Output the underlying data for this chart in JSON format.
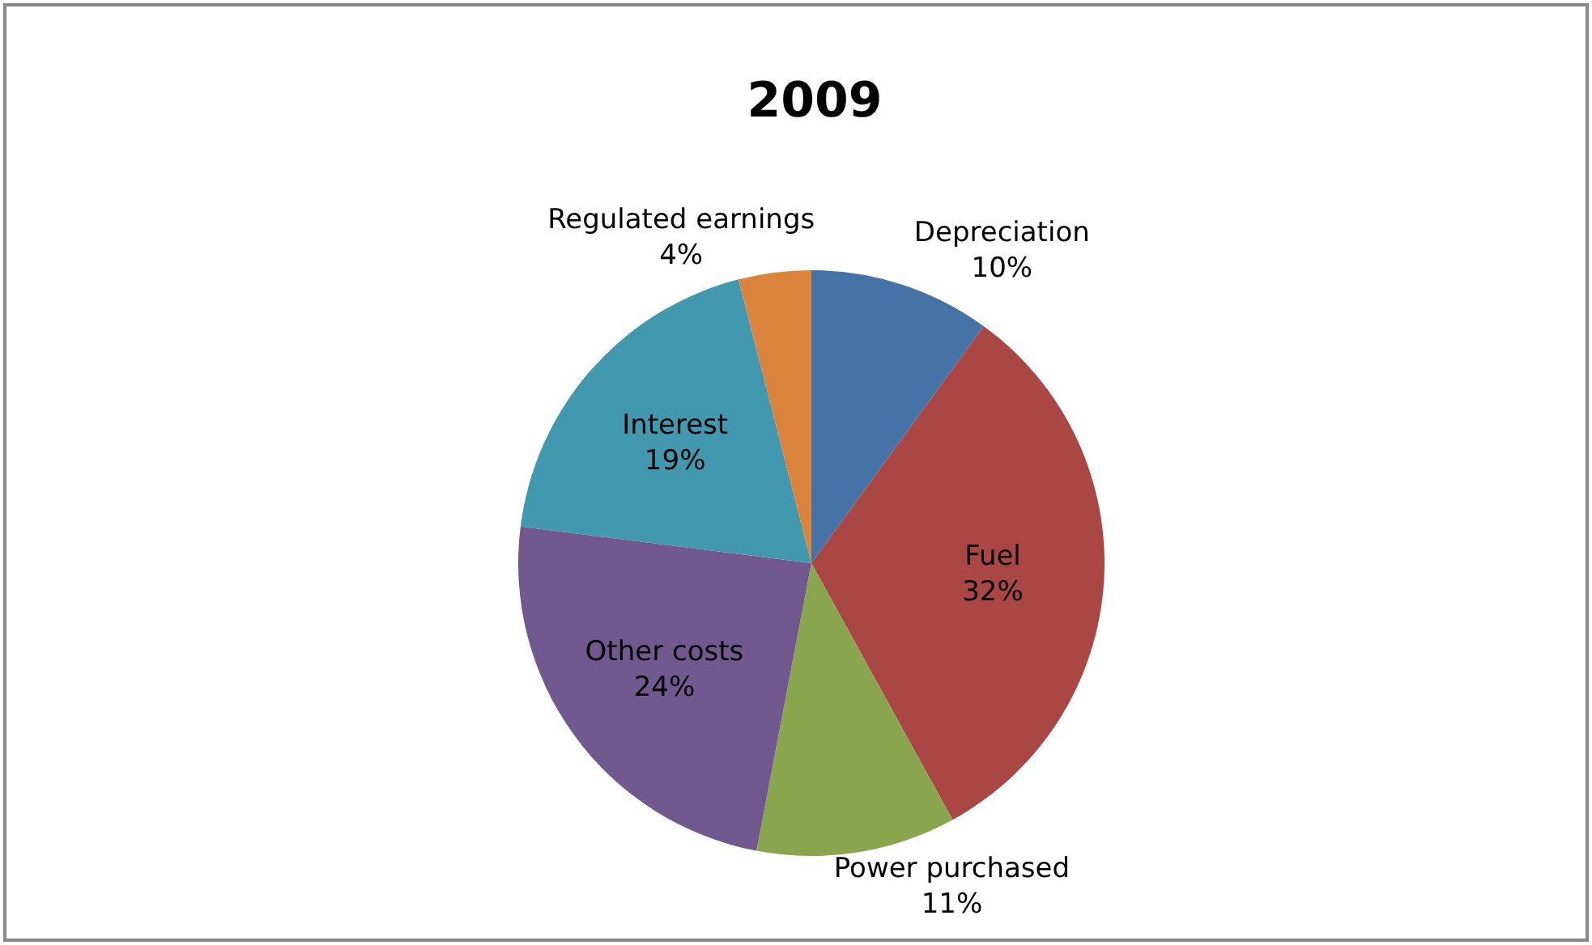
{
  "chart_data": {
    "type": "pie",
    "title": "2009",
    "categories": [
      "Depreciation",
      "Fuel",
      "Power purchased",
      "Other costs",
      "Interest",
      "Regulated earnings"
    ],
    "values": [
      10,
      32,
      11,
      24,
      19,
      4
    ],
    "value_labels": [
      "10%",
      "32%",
      "11%",
      "24%",
      "19%",
      "4%"
    ],
    "colors": [
      "#4572a7",
      "#aa4643",
      "#89a54e",
      "#71588f",
      "#4198af",
      "#db843d"
    ]
  }
}
